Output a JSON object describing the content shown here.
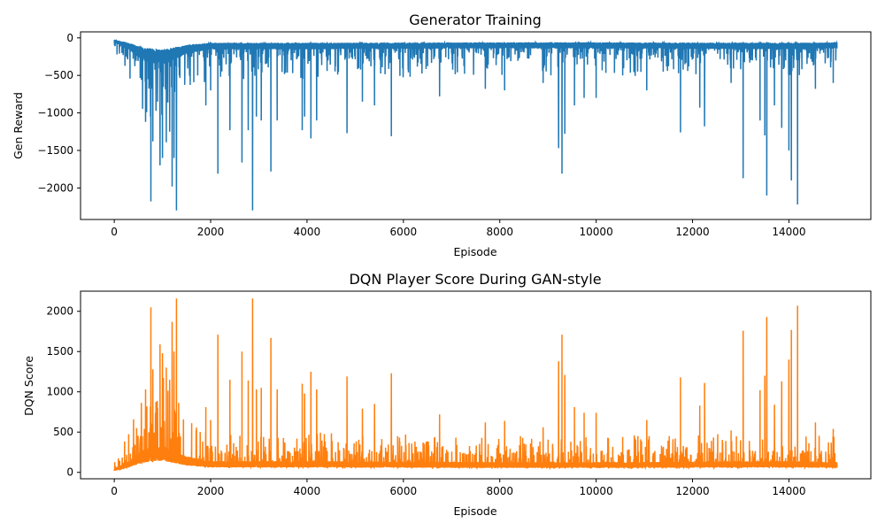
{
  "chart_data": [
    {
      "type": "line",
      "title": "Generator Training",
      "xlabel": "Episode",
      "ylabel": "Gen Reward",
      "xlim": [
        -700,
        15700
      ],
      "ylim": [
        -2420,
        80
      ],
      "xticks": [
        0,
        2000,
        4000,
        6000,
        8000,
        10000,
        12000,
        14000
      ],
      "yticks": [
        0,
        -500,
        -1000,
        -1500,
        -2000
      ],
      "grid": false,
      "series": [
        {
          "color": "#1f77b4",
          "n_points": 15000,
          "baseline": {
            "x": [
              0,
              300,
              600,
              1000,
              1500,
              2000,
              4000,
              6000,
              8000,
              10000,
              12000,
              14000,
              15000
            ],
            "y": [
              -40,
              -110,
              -220,
              -260,
              -150,
              -110,
              -110,
              -105,
              -100,
              -100,
              -105,
              -110,
              -100
            ]
          },
          "spikes": [
            {
              "x": 650,
              "y": -1120
            },
            {
              "x": 760,
              "y": -2180
            },
            {
              "x": 800,
              "y": -1380
            },
            {
              "x": 900,
              "y": -850
            },
            {
              "x": 950,
              "y": -1700
            },
            {
              "x": 1000,
              "y": -1600
            },
            {
              "x": 1080,
              "y": -1390
            },
            {
              "x": 1150,
              "y": -1250
            },
            {
              "x": 1200,
              "y": -1980
            },
            {
              "x": 1240,
              "y": -1600
            },
            {
              "x": 1290,
              "y": -2300
            },
            {
              "x": 1350,
              "y": -500
            },
            {
              "x": 1900,
              "y": -900
            },
            {
              "x": 2000,
              "y": -700
            },
            {
              "x": 2150,
              "y": -1810
            },
            {
              "x": 2400,
              "y": -1230
            },
            {
              "x": 2650,
              "y": -1660
            },
            {
              "x": 2780,
              "y": -1230
            },
            {
              "x": 2870,
              "y": -2300
            },
            {
              "x": 2950,
              "y": -1050
            },
            {
              "x": 3050,
              "y": -1100
            },
            {
              "x": 3250,
              "y": -1780
            },
            {
              "x": 3380,
              "y": -1100
            },
            {
              "x": 3900,
              "y": -1230
            },
            {
              "x": 3950,
              "y": -1050
            },
            {
              "x": 4080,
              "y": -1340
            },
            {
              "x": 4200,
              "y": -1100
            },
            {
              "x": 4830,
              "y": -1270
            },
            {
              "x": 5150,
              "y": -850
            },
            {
              "x": 5400,
              "y": -900
            },
            {
              "x": 5750,
              "y": -1310
            },
            {
              "x": 6750,
              "y": -780
            },
            {
              "x": 7700,
              "y": -680
            },
            {
              "x": 8100,
              "y": -700
            },
            {
              "x": 8900,
              "y": -600
            },
            {
              "x": 9220,
              "y": -1470
            },
            {
              "x": 9290,
              "y": -1810
            },
            {
              "x": 9350,
              "y": -1280
            },
            {
              "x": 9550,
              "y": -900
            },
            {
              "x": 9750,
              "y": -800
            },
            {
              "x": 10000,
              "y": -800
            },
            {
              "x": 10550,
              "y": -500
            },
            {
              "x": 11050,
              "y": -700
            },
            {
              "x": 11750,
              "y": -1260
            },
            {
              "x": 12150,
              "y": -930
            },
            {
              "x": 12250,
              "y": -1180
            },
            {
              "x": 12800,
              "y": -600
            },
            {
              "x": 13050,
              "y": -1870
            },
            {
              "x": 13400,
              "y": -1100
            },
            {
              "x": 13500,
              "y": -1300
            },
            {
              "x": 13540,
              "y": -2100
            },
            {
              "x": 13700,
              "y": -900
            },
            {
              "x": 13850,
              "y": -1200
            },
            {
              "x": 14000,
              "y": -1500
            },
            {
              "x": 14050,
              "y": -1900
            },
            {
              "x": 14180,
              "y": -2220
            },
            {
              "x": 14550,
              "y": -680
            },
            {
              "x": 14920,
              "y": -600
            }
          ]
        }
      ]
    },
    {
      "type": "line",
      "title": "DQN Player Score During GAN-style",
      "xlabel": "Episode",
      "ylabel": "DQN Score",
      "xlim": [
        -700,
        15700
      ],
      "ylim": [
        -80,
        2250
      ],
      "xticks": [
        0,
        2000,
        4000,
        6000,
        8000,
        10000,
        12000,
        14000
      ],
      "yticks": [
        0,
        500,
        1000,
        1500,
        2000
      ],
      "grid": false,
      "series": [
        {
          "color": "#ff7f0e",
          "n_points": 15000,
          "baseline": {
            "x": [
              0,
              300,
              600,
              1000,
              1500,
              2000,
              4000,
              6000,
              8000,
              10000,
              12000,
              14000,
              15000
            ],
            "y": [
              30,
              100,
              200,
              240,
              140,
              100,
              100,
              95,
              90,
              90,
              95,
              100,
              90
            ]
          },
          "spikes": [
            {
              "x": 650,
              "y": 1030
            },
            {
              "x": 760,
              "y": 2050
            },
            {
              "x": 800,
              "y": 1280
            },
            {
              "x": 900,
              "y": 800
            },
            {
              "x": 950,
              "y": 1590
            },
            {
              "x": 1000,
              "y": 1480
            },
            {
              "x": 1080,
              "y": 1300
            },
            {
              "x": 1150,
              "y": 1150
            },
            {
              "x": 1200,
              "y": 1870
            },
            {
              "x": 1240,
              "y": 1500
            },
            {
              "x": 1290,
              "y": 2160
            },
            {
              "x": 1350,
              "y": 490
            },
            {
              "x": 1900,
              "y": 810
            },
            {
              "x": 2000,
              "y": 650
            },
            {
              "x": 2150,
              "y": 1710
            },
            {
              "x": 2400,
              "y": 1150
            },
            {
              "x": 2650,
              "y": 1500
            },
            {
              "x": 2780,
              "y": 1140
            },
            {
              "x": 2870,
              "y": 2160
            },
            {
              "x": 2950,
              "y": 1030
            },
            {
              "x": 3050,
              "y": 1050
            },
            {
              "x": 3250,
              "y": 1670
            },
            {
              "x": 3380,
              "y": 1030
            },
            {
              "x": 3900,
              "y": 1100
            },
            {
              "x": 3950,
              "y": 980
            },
            {
              "x": 4080,
              "y": 1250
            },
            {
              "x": 4200,
              "y": 1030
            },
            {
              "x": 4830,
              "y": 1190
            },
            {
              "x": 5150,
              "y": 790
            },
            {
              "x": 5400,
              "y": 850
            },
            {
              "x": 5750,
              "y": 1230
            },
            {
              "x": 6750,
              "y": 720
            },
            {
              "x": 7700,
              "y": 620
            },
            {
              "x": 8100,
              "y": 640
            },
            {
              "x": 8900,
              "y": 560
            },
            {
              "x": 9220,
              "y": 1380
            },
            {
              "x": 9290,
              "y": 1710
            },
            {
              "x": 9350,
              "y": 1210
            },
            {
              "x": 9550,
              "y": 810
            },
            {
              "x": 9750,
              "y": 740
            },
            {
              "x": 10000,
              "y": 740
            },
            {
              "x": 10550,
              "y": 440
            },
            {
              "x": 11050,
              "y": 650
            },
            {
              "x": 11750,
              "y": 1180
            },
            {
              "x": 12150,
              "y": 830
            },
            {
              "x": 12250,
              "y": 1110
            },
            {
              "x": 12800,
              "y": 520
            },
            {
              "x": 13050,
              "y": 1760
            },
            {
              "x": 13400,
              "y": 1020
            },
            {
              "x": 13500,
              "y": 1200
            },
            {
              "x": 13540,
              "y": 1930
            },
            {
              "x": 13700,
              "y": 840
            },
            {
              "x": 13850,
              "y": 1130
            },
            {
              "x": 14000,
              "y": 1400
            },
            {
              "x": 14050,
              "y": 1770
            },
            {
              "x": 14180,
              "y": 2070
            },
            {
              "x": 14550,
              "y": 620
            },
            {
              "x": 14920,
              "y": 540
            }
          ]
        }
      ]
    }
  ]
}
